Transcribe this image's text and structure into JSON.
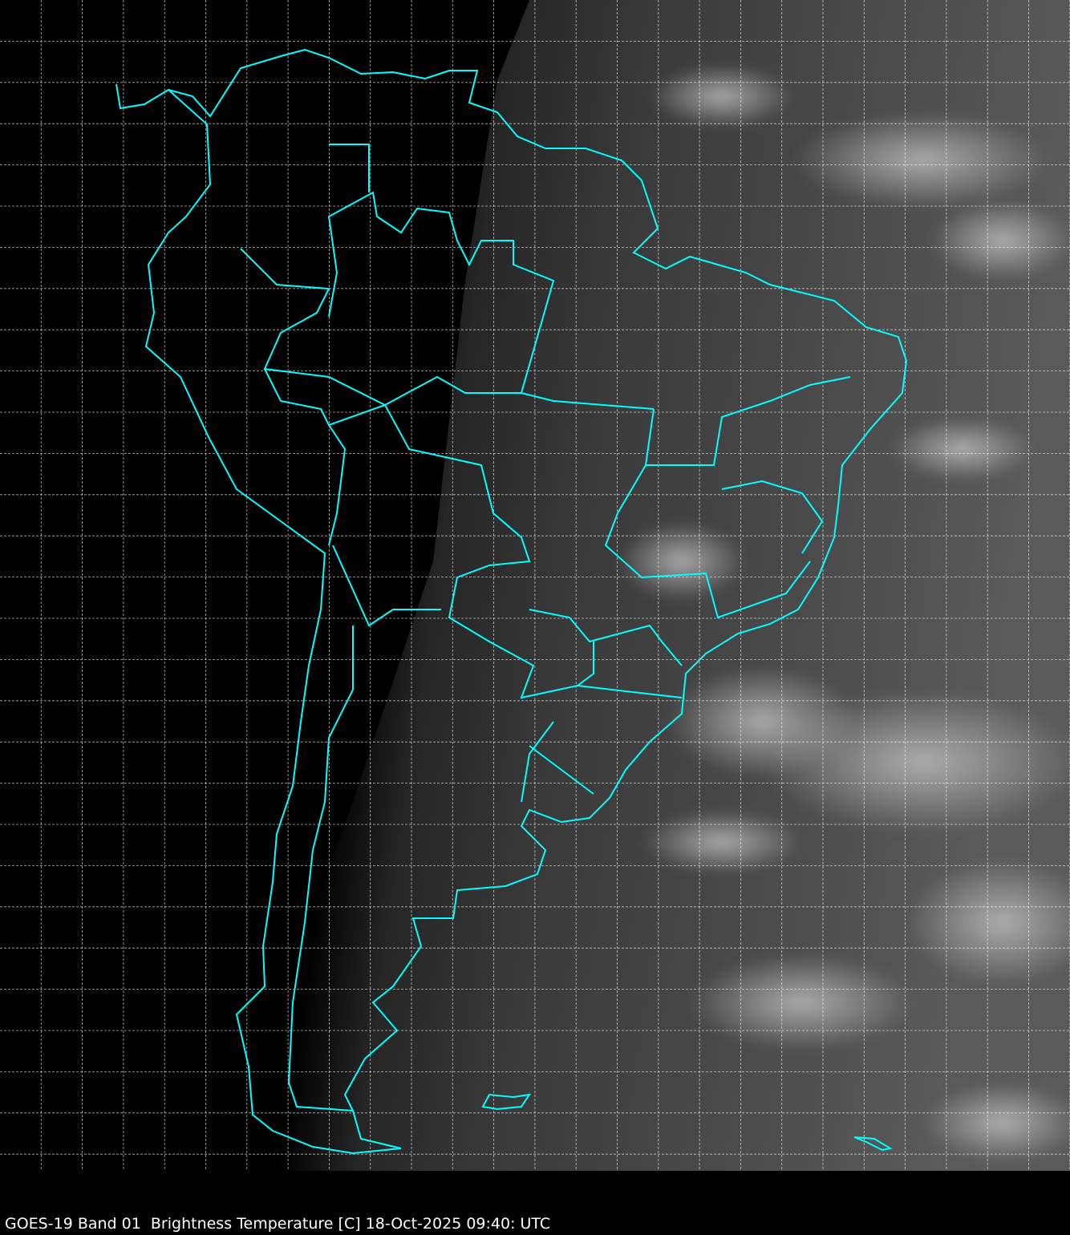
{
  "caption": "GOES-19 Band 01  Brightness Temperature [C] 18-Oct-2025 09:40: UTC",
  "colors": {
    "coastline": "#00ffff",
    "grid": "#ffffff",
    "background": "#000000"
  }
}
